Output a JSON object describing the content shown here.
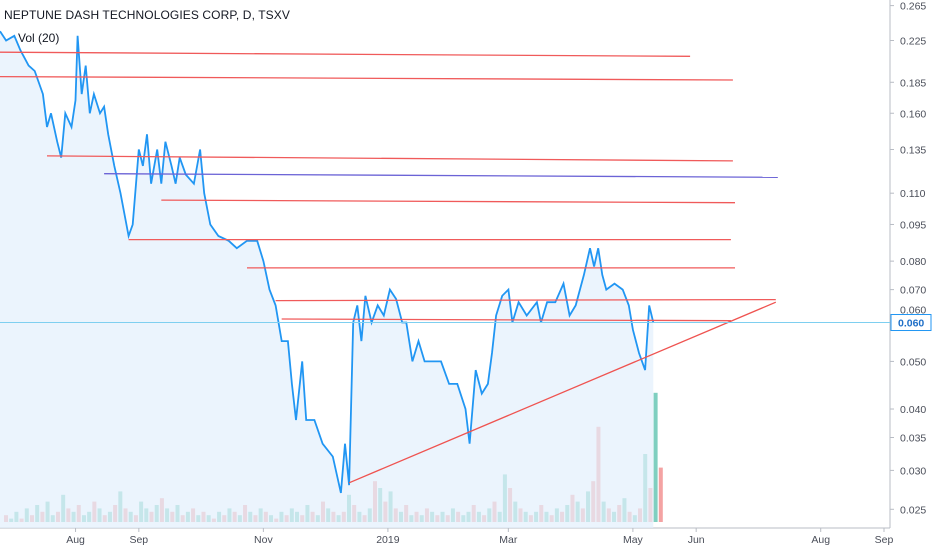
{
  "header": {
    "title": "NEPTUNE DASH TECHNOLOGIES CORP, D, TSXV",
    "volume_label": "Vol (20)"
  },
  "colors": {
    "price_line": "#2196f3",
    "price_fill": "#e3f0fc",
    "resistance_line": "#f05a5a",
    "support_line": "#ef5350",
    "blue_level": "#6b63d6",
    "last_price_line": "#7ecff0",
    "volume_up": "#7fcfc0",
    "volume_down": "#f4a3a3"
  },
  "chart_data": {
    "type": "line",
    "title": "NEPTUNE DASH TECHNOLOGIES CORP, D, TSXV",
    "xlabel": "",
    "ylabel": "",
    "y_scale": "log",
    "ylim": [
      0.024,
      0.267
    ],
    "x_ticks": [
      "Aug",
      "Sep",
      "Nov",
      "2019",
      "Mar",
      "May",
      "Jun",
      "Aug",
      "Sep"
    ],
    "x_tick_dates": [
      "2018-08-01",
      "2018-09-01",
      "2018-11-01",
      "2019-01-01",
      "2019-03-01",
      "2019-05-01",
      "2019-06-01",
      "2019-08-01",
      "2019-09-01"
    ],
    "y_ticks": [
      "0.265",
      "0.225",
      "0.185",
      "0.160",
      "0.135",
      "0.110",
      "0.095",
      "0.080",
      "0.070",
      "0.050",
      "0.040",
      "0.035",
      "0.030",
      "0.025"
    ],
    "y_tick_values": [
      0.265,
      0.225,
      0.185,
      0.16,
      0.135,
      0.11,
      0.095,
      0.08,
      0.07,
      0.05,
      0.04,
      0.035,
      0.03,
      0.025
    ],
    "last_price": "0.060",
    "hidden_tick_label": "0.060",
    "series": [
      {
        "points": [
          [
            "2018-06-25",
            0.235
          ],
          [
            "2018-06-28",
            0.225
          ],
          [
            "2018-07-02",
            0.23
          ],
          [
            "2018-07-05",
            0.215
          ],
          [
            "2018-07-09",
            0.2
          ],
          [
            "2018-07-12",
            0.195
          ],
          [
            "2018-07-16",
            0.175
          ],
          [
            "2018-07-18",
            0.15
          ],
          [
            "2018-07-20",
            0.16
          ],
          [
            "2018-07-23",
            0.14
          ],
          [
            "2018-07-25",
            0.13
          ],
          [
            "2018-07-27",
            0.16
          ],
          [
            "2018-07-30",
            0.15
          ],
          [
            "2018-08-01",
            0.17
          ],
          [
            "2018-08-02",
            0.23
          ],
          [
            "2018-08-04",
            0.175
          ],
          [
            "2018-08-06",
            0.2
          ],
          [
            "2018-08-08",
            0.16
          ],
          [
            "2018-08-10",
            0.175
          ],
          [
            "2018-08-13",
            0.16
          ],
          [
            "2018-08-15",
            0.165
          ],
          [
            "2018-08-17",
            0.145
          ],
          [
            "2018-08-20",
            0.125
          ],
          [
            "2018-08-23",
            0.11
          ],
          [
            "2018-08-27",
            0.09
          ],
          [
            "2018-08-29",
            0.095
          ],
          [
            "2018-09-01",
            0.135
          ],
          [
            "2018-09-03",
            0.125
          ],
          [
            "2018-09-05",
            0.145
          ],
          [
            "2018-09-07",
            0.115
          ],
          [
            "2018-09-10",
            0.135
          ],
          [
            "2018-09-12",
            0.115
          ],
          [
            "2018-09-14",
            0.14
          ],
          [
            "2018-09-17",
            0.125
          ],
          [
            "2018-09-19",
            0.115
          ],
          [
            "2018-09-21",
            0.13
          ],
          [
            "2018-09-24",
            0.12
          ],
          [
            "2018-09-28",
            0.115
          ],
          [
            "2018-10-01",
            0.135
          ],
          [
            "2018-10-03",
            0.11
          ],
          [
            "2018-10-06",
            0.095
          ],
          [
            "2018-10-10",
            0.09
          ],
          [
            "2018-10-15",
            0.088
          ],
          [
            "2018-10-19",
            0.085
          ],
          [
            "2018-10-24",
            0.088
          ],
          [
            "2018-10-29",
            0.088
          ],
          [
            "2018-11-01",
            0.08
          ],
          [
            "2018-11-04",
            0.07
          ],
          [
            "2018-11-07",
            0.065
          ],
          [
            "2018-11-10",
            0.055
          ],
          [
            "2018-11-13",
            0.055
          ],
          [
            "2018-11-15",
            0.045
          ],
          [
            "2018-11-17",
            0.038
          ],
          [
            "2018-11-20",
            0.05
          ],
          [
            "2018-11-22",
            0.038
          ],
          [
            "2018-11-26",
            0.038
          ],
          [
            "2018-11-30",
            0.034
          ],
          [
            "2018-12-05",
            0.032
          ],
          [
            "2018-12-09",
            0.027
          ],
          [
            "2018-12-11",
            0.034
          ],
          [
            "2018-12-13",
            0.028
          ],
          [
            "2018-12-15",
            0.06
          ],
          [
            "2018-12-17",
            0.065
          ],
          [
            "2018-12-19",
            0.055
          ],
          [
            "2018-12-21",
            0.068
          ],
          [
            "2018-12-24",
            0.06
          ],
          [
            "2018-12-27",
            0.065
          ],
          [
            "2018-12-30",
            0.062
          ],
          [
            "2019-01-02",
            0.07
          ],
          [
            "2019-01-05",
            0.067
          ],
          [
            "2019-01-08",
            0.06
          ],
          [
            "2019-01-10",
            0.06
          ],
          [
            "2019-01-13",
            0.05
          ],
          [
            "2019-01-16",
            0.055
          ],
          [
            "2019-01-19",
            0.05
          ],
          [
            "2019-01-23",
            0.05
          ],
          [
            "2019-01-27",
            0.05
          ],
          [
            "2019-01-31",
            0.045
          ],
          [
            "2019-02-04",
            0.045
          ],
          [
            "2019-02-08",
            0.04
          ],
          [
            "2019-02-10",
            0.034
          ],
          [
            "2019-02-13",
            0.048
          ],
          [
            "2019-02-16",
            0.043
          ],
          [
            "2019-02-19",
            0.045
          ],
          [
            "2019-02-21",
            0.052
          ],
          [
            "2019-02-23",
            0.062
          ],
          [
            "2019-02-26",
            0.068
          ],
          [
            "2019-03-01",
            0.07
          ],
          [
            "2019-03-03",
            0.06
          ],
          [
            "2019-03-06",
            0.066
          ],
          [
            "2019-03-10",
            0.062
          ],
          [
            "2019-03-15",
            0.066
          ],
          [
            "2019-03-17",
            0.06
          ],
          [
            "2019-03-20",
            0.066
          ],
          [
            "2019-03-24",
            0.066
          ],
          [
            "2019-03-28",
            0.072
          ],
          [
            "2019-03-31",
            0.062
          ],
          [
            "2019-04-03",
            0.065
          ],
          [
            "2019-04-07",
            0.075
          ],
          [
            "2019-04-10",
            0.085
          ],
          [
            "2019-04-12",
            0.078
          ],
          [
            "2019-04-14",
            0.085
          ],
          [
            "2019-04-16",
            0.075
          ],
          [
            "2019-04-18",
            0.07
          ],
          [
            "2019-04-22",
            0.072
          ],
          [
            "2019-04-26",
            0.07
          ],
          [
            "2019-04-29",
            0.065
          ],
          [
            "2019-05-01",
            0.058
          ],
          [
            "2019-05-04",
            0.052
          ],
          [
            "2019-05-07",
            0.048
          ],
          [
            "2019-05-09",
            0.065
          ],
          [
            "2019-05-11",
            0.06
          ]
        ]
      }
    ],
    "trend_lines": [
      {
        "kind": "resistance",
        "from": [
          "2018-06-25",
          0.213
        ],
        "to": [
          "2019-05-29",
          0.209
        ]
      },
      {
        "kind": "resistance",
        "from": [
          "2018-06-25",
          0.19
        ],
        "to": [
          "2019-06-19",
          0.187
        ]
      },
      {
        "kind": "resistance",
        "from": [
          "2018-07-18",
          0.131
        ],
        "to": [
          "2019-06-19",
          0.128
        ]
      },
      {
        "kind": "level",
        "from": [
          "2018-08-15",
          0.1205
        ],
        "to": [
          "2019-07-11",
          0.1185
        ]
      },
      {
        "kind": "resistance",
        "from": [
          "2018-09-12",
          0.1065
        ],
        "to": [
          "2019-06-20",
          0.1052
        ]
      },
      {
        "kind": "resistance",
        "from": [
          "2018-08-27",
          0.0885
        ],
        "to": [
          "2019-06-18",
          0.0885
        ]
      },
      {
        "kind": "resistance",
        "from": [
          "2018-10-24",
          0.0775
        ],
        "to": [
          "2019-06-20",
          0.0775
        ]
      },
      {
        "kind": "resistance",
        "from": [
          "2018-11-07",
          0.0665
        ],
        "to": [
          "2019-07-10",
          0.0668
        ]
      },
      {
        "kind": "resistance",
        "from": [
          "2018-11-10",
          0.061
        ],
        "to": [
          "2019-06-18",
          0.0605
        ]
      },
      {
        "kind": "support",
        "from": [
          "2018-12-13",
          0.0283
        ],
        "to": [
          "2019-07-10",
          0.066
        ]
      }
    ],
    "volume": [
      [
        2,
        "d"
      ],
      [
        1,
        "u"
      ],
      [
        3,
        "u"
      ],
      [
        1,
        "d"
      ],
      [
        4,
        "u"
      ],
      [
        2,
        "d"
      ],
      [
        5,
        "u"
      ],
      [
        3,
        "d"
      ],
      [
        6,
        "u"
      ],
      [
        2,
        "u"
      ],
      [
        3,
        "d"
      ],
      [
        8,
        "u"
      ],
      [
        4,
        "d"
      ],
      [
        3,
        "u"
      ],
      [
        5,
        "d"
      ],
      [
        2,
        "u"
      ],
      [
        3,
        "u"
      ],
      [
        6,
        "d"
      ],
      [
        4,
        "u"
      ],
      [
        2,
        "d"
      ],
      [
        3,
        "u"
      ],
      [
        5,
        "d"
      ],
      [
        9,
        "u"
      ],
      [
        4,
        "d"
      ],
      [
        3,
        "u"
      ],
      [
        2,
        "d"
      ],
      [
        6,
        "u"
      ],
      [
        4,
        "u"
      ],
      [
        3,
        "d"
      ],
      [
        5,
        "u"
      ],
      [
        7,
        "d"
      ],
      [
        4,
        "u"
      ],
      [
        3,
        "d"
      ],
      [
        5,
        "u"
      ],
      [
        2,
        "d"
      ],
      [
        3,
        "u"
      ],
      [
        4,
        "d"
      ],
      [
        2,
        "u"
      ],
      [
        3,
        "d"
      ],
      [
        2,
        "u"
      ],
      [
        1,
        "d"
      ],
      [
        3,
        "u"
      ],
      [
        2,
        "d"
      ],
      [
        4,
        "u"
      ],
      [
        3,
        "d"
      ],
      [
        2,
        "u"
      ],
      [
        5,
        "d"
      ],
      [
        3,
        "u"
      ],
      [
        2,
        "d"
      ],
      [
        4,
        "u"
      ],
      [
        3,
        "d"
      ],
      [
        2,
        "u"
      ],
      [
        1,
        "d"
      ],
      [
        3,
        "u"
      ],
      [
        2,
        "d"
      ],
      [
        4,
        "u"
      ],
      [
        3,
        "u"
      ],
      [
        2,
        "d"
      ],
      [
        5,
        "u"
      ],
      [
        3,
        "d"
      ],
      [
        2,
        "u"
      ],
      [
        6,
        "d"
      ],
      [
        4,
        "u"
      ],
      [
        3,
        "d"
      ],
      [
        2,
        "u"
      ],
      [
        3,
        "d"
      ],
      [
        8,
        "u"
      ],
      [
        5,
        "d"
      ],
      [
        3,
        "u"
      ],
      [
        2,
        "d"
      ],
      [
        4,
        "u"
      ],
      [
        12,
        "d"
      ],
      [
        10,
        "u"
      ],
      [
        6,
        "d"
      ],
      [
        9,
        "u"
      ],
      [
        4,
        "d"
      ],
      [
        3,
        "u"
      ],
      [
        5,
        "d"
      ],
      [
        2,
        "u"
      ],
      [
        3,
        "d"
      ],
      [
        2,
        "u"
      ],
      [
        4,
        "d"
      ],
      [
        3,
        "u"
      ],
      [
        2,
        "d"
      ],
      [
        3,
        "u"
      ],
      [
        2,
        "d"
      ],
      [
        4,
        "u"
      ],
      [
        3,
        "d"
      ],
      [
        2,
        "u"
      ],
      [
        3,
        "u"
      ],
      [
        5,
        "d"
      ],
      [
        3,
        "u"
      ],
      [
        2,
        "d"
      ],
      [
        4,
        "u"
      ],
      [
        6,
        "d"
      ],
      [
        3,
        "u"
      ],
      [
        14,
        "u"
      ],
      [
        10,
        "d"
      ],
      [
        6,
        "u"
      ],
      [
        4,
        "d"
      ],
      [
        3,
        "u"
      ],
      [
        2,
        "d"
      ],
      [
        3,
        "u"
      ],
      [
        5,
        "d"
      ],
      [
        3,
        "u"
      ],
      [
        2,
        "d"
      ],
      [
        4,
        "u"
      ],
      [
        3,
        "d"
      ],
      [
        5,
        "u"
      ],
      [
        8,
        "d"
      ],
      [
        6,
        "u"
      ],
      [
        4,
        "d"
      ],
      [
        9,
        "u"
      ],
      [
        12,
        "d"
      ],
      [
        28,
        "d"
      ],
      [
        6,
        "u"
      ],
      [
        4,
        "d"
      ],
      [
        3,
        "u"
      ],
      [
        5,
        "d"
      ],
      [
        7,
        "u"
      ],
      [
        3,
        "d"
      ],
      [
        2,
        "u"
      ],
      [
        4,
        "d"
      ],
      [
        20,
        "u"
      ],
      [
        10,
        "d"
      ],
      [
        38,
        "u"
      ],
      [
        16,
        "d"
      ]
    ]
  }
}
